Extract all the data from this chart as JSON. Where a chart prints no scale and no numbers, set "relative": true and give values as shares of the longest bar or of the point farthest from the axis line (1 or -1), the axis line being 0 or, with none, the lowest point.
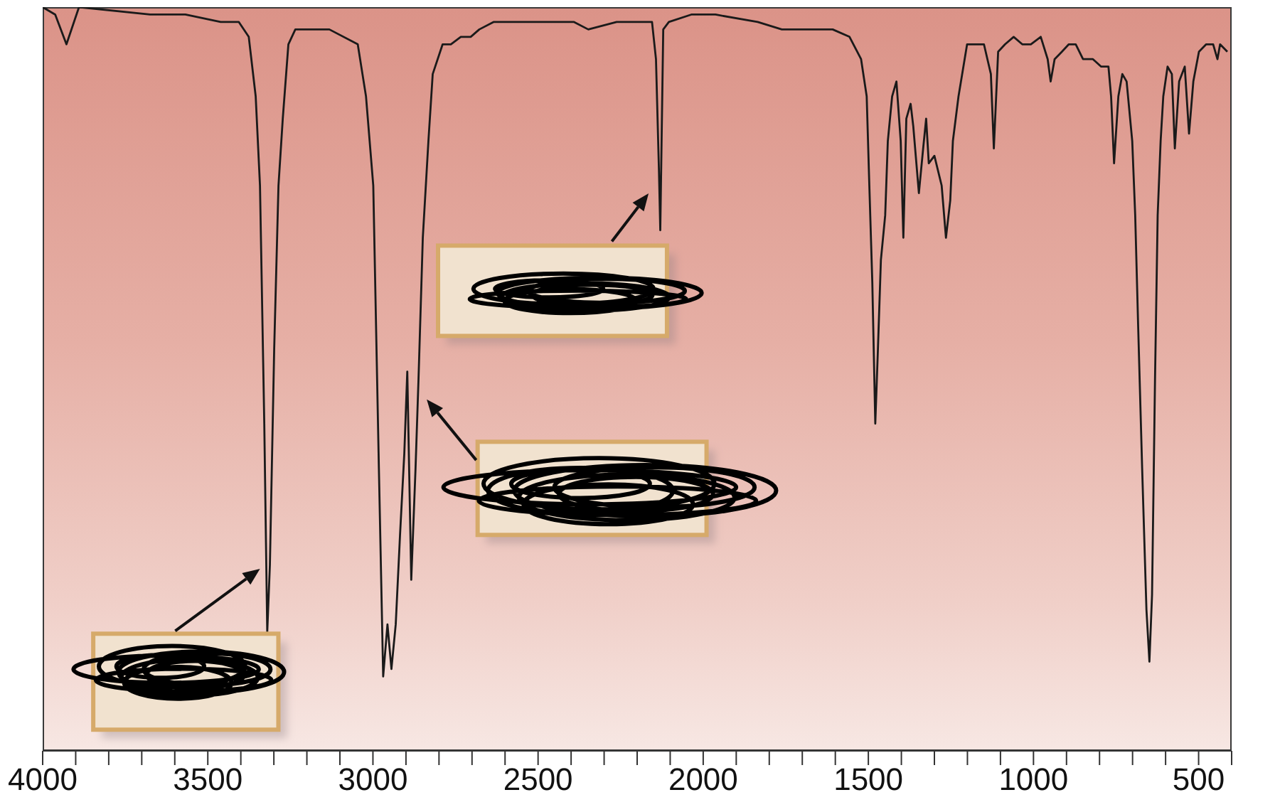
{
  "chart_data": {
    "type": "line",
    "relative": true,
    "color": "#1a1a1a",
    "x": [
      4000,
      3962,
      3928,
      3890,
      3675,
      3568,
      3461,
      3406,
      3376,
      3355,
      3342,
      3329,
      3320,
      3312,
      3299,
      3286,
      3273,
      3256,
      3235,
      3132,
      3046,
      3021,
      2999,
      2982,
      2969,
      2956,
      2944,
      2931,
      2918,
      2905,
      2896,
      2884,
      2871,
      2862,
      2849,
      2832,
      2819,
      2789,
      2764,
      2734,
      2704,
      2678,
      2635,
      2532,
      2391,
      2348,
      2262,
      2177,
      2155,
      2143,
      2134,
      2130,
      2126,
      2121,
      2104,
      2036,
      1963,
      1835,
      1762,
      1719,
      1664,
      1608,
      1557,
      1522,
      1505,
      1497,
      1488,
      1479,
      1471,
      1462,
      1449,
      1441,
      1428,
      1415,
      1402,
      1394,
      1385,
      1372,
      1364,
      1347,
      1334,
      1325,
      1317,
      1300,
      1278,
      1265,
      1252,
      1244,
      1227,
      1201,
      1180,
      1150,
      1129,
      1120,
      1107,
      1086,
      1060,
      1034,
      1008,
      978,
      957,
      948,
      936,
      914,
      893,
      872,
      850,
      820,
      795,
      773,
      765,
      756,
      743,
      731,
      718,
      701,
      692,
      683,
      671,
      658,
      649,
      641,
      632,
      624,
      615,
      607,
      594,
      581,
      572,
      559,
      542,
      529,
      516,
      499,
      477,
      456,
      443,
      435,
      413
    ],
    "values": [
      1.0,
      0.99,
      0.95,
      1.0,
      0.99,
      0.99,
      0.98,
      0.98,
      0.96,
      0.88,
      0.76,
      0.44,
      0.16,
      0.25,
      0.54,
      0.76,
      0.85,
      0.95,
      0.97,
      0.97,
      0.95,
      0.88,
      0.76,
      0.38,
      0.1,
      0.17,
      0.11,
      0.17,
      0.29,
      0.4,
      0.51,
      0.23,
      0.38,
      0.5,
      0.69,
      0.82,
      0.91,
      0.95,
      0.95,
      0.96,
      0.96,
      0.97,
      0.98,
      0.98,
      0.98,
      0.97,
      0.98,
      0.98,
      0.98,
      0.93,
      0.78,
      0.7,
      0.82,
      0.97,
      0.98,
      0.99,
      0.99,
      0.98,
      0.97,
      0.97,
      0.97,
      0.97,
      0.96,
      0.93,
      0.88,
      0.76,
      0.63,
      0.44,
      0.54,
      0.66,
      0.72,
      0.82,
      0.88,
      0.9,
      0.82,
      0.69,
      0.85,
      0.87,
      0.84,
      0.75,
      0.81,
      0.85,
      0.79,
      0.8,
      0.76,
      0.69,
      0.74,
      0.82,
      0.88,
      0.95,
      0.95,
      0.95,
      0.91,
      0.81,
      0.94,
      0.95,
      0.96,
      0.95,
      0.95,
      0.96,
      0.93,
      0.9,
      0.93,
      0.94,
      0.95,
      0.95,
      0.93,
      0.93,
      0.92,
      0.92,
      0.88,
      0.79,
      0.88,
      0.91,
      0.9,
      0.82,
      0.72,
      0.57,
      0.38,
      0.19,
      0.12,
      0.21,
      0.5,
      0.72,
      0.82,
      0.88,
      0.92,
      0.91,
      0.81,
      0.9,
      0.92,
      0.83,
      0.9,
      0.94,
      0.95,
      0.95,
      0.93,
      0.95,
      0.94
    ],
    "xlim": [
      4000,
      400
    ],
    "xticks": [
      4000,
      {
        "value": 3900,
        "label": null
      },
      {
        "value": 3800,
        "label": null
      },
      {
        "value": 3700,
        "label": null
      },
      {
        "value": 3600,
        "label": null
      },
      3500,
      {
        "value": 3400,
        "label": null
      },
      {
        "value": 3300,
        "label": null
      },
      {
        "value": 3200,
        "label": null
      },
      {
        "value": 3100,
        "label": null
      },
      3000,
      {
        "value": 2900,
        "label": null
      },
      {
        "value": 2800,
        "label": null
      },
      {
        "value": 2700,
        "label": null
      },
      {
        "value": 2600,
        "label": null
      },
      2500,
      {
        "value": 2400,
        "label": null
      },
      {
        "value": 2300,
        "label": null
      },
      {
        "value": 2200,
        "label": null
      },
      {
        "value": 2100,
        "label": null
      },
      2000,
      {
        "value": 1900,
        "label": null
      },
      {
        "value": 1800,
        "label": null
      },
      {
        "value": 1700,
        "label": null
      },
      {
        "value": 1600,
        "label": null
      },
      1500,
      {
        "value": 1400,
        "label": null
      },
      {
        "value": 1300,
        "label": null
      },
      {
        "value": 1200,
        "label": null
      },
      {
        "value": 1100,
        "label": null
      },
      1000,
      {
        "value": 900,
        "label": null
      },
      {
        "value": 800,
        "label": null
      },
      {
        "value": 700,
        "label": null
      },
      {
        "value": 600,
        "label": null
      },
      500,
      {
        "value": 400,
        "label": null
      }
    ]
  }
}
